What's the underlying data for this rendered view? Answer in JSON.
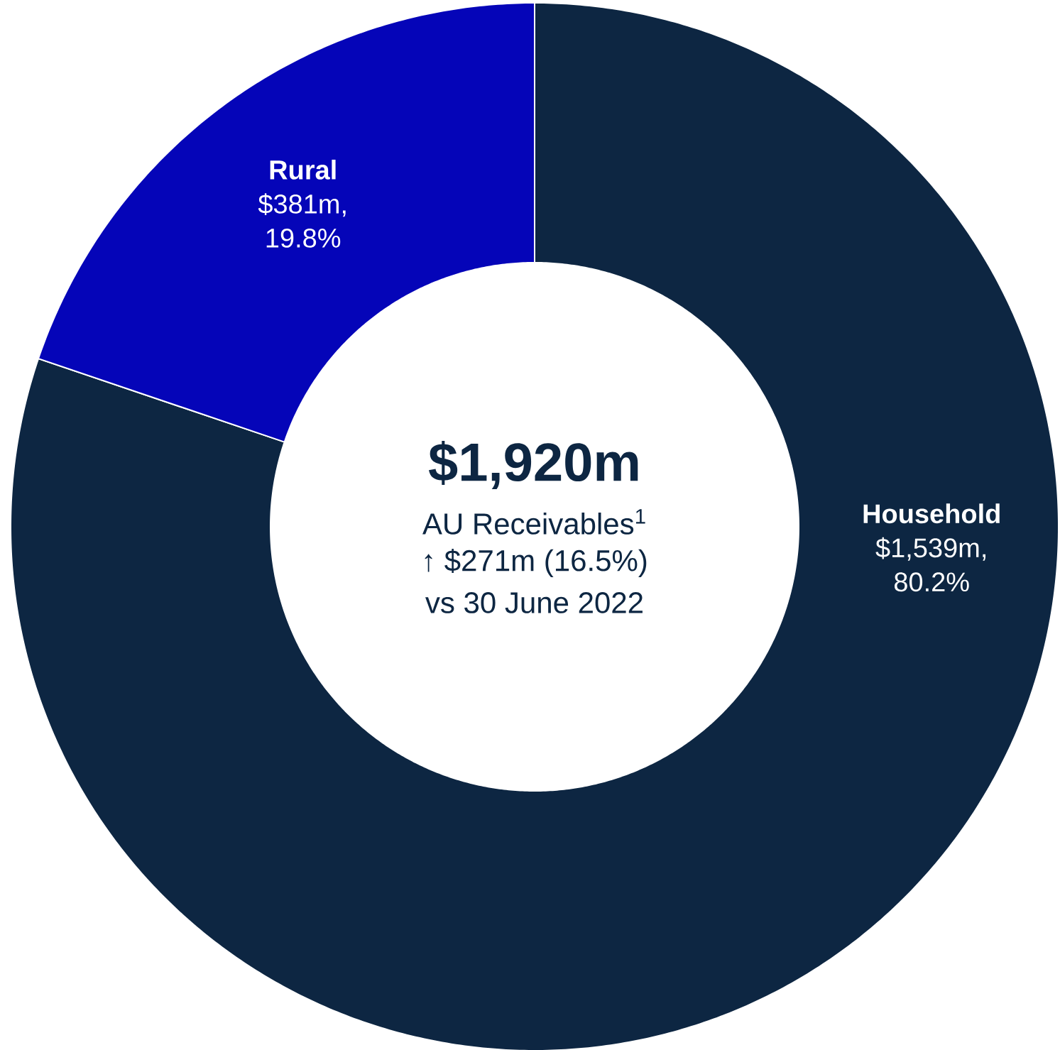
{
  "chart_data": {
    "type": "donut",
    "title": "$1,920m",
    "subtitle": "AU Receivables$^{1}$",
    "annotations": [
      "↑ $271m (16.5%)",
      "vs 30 June 2022"
    ],
    "categories": [
      "Household",
      "Rural"
    ],
    "values": [
      80.2,
      19.8
    ],
    "value_labels": [
      "$1,539m, 80.2%",
      "$381m, 19.8%"
    ],
    "colors": [
      "#0d2642",
      "#0505b8"
    ]
  }
}
